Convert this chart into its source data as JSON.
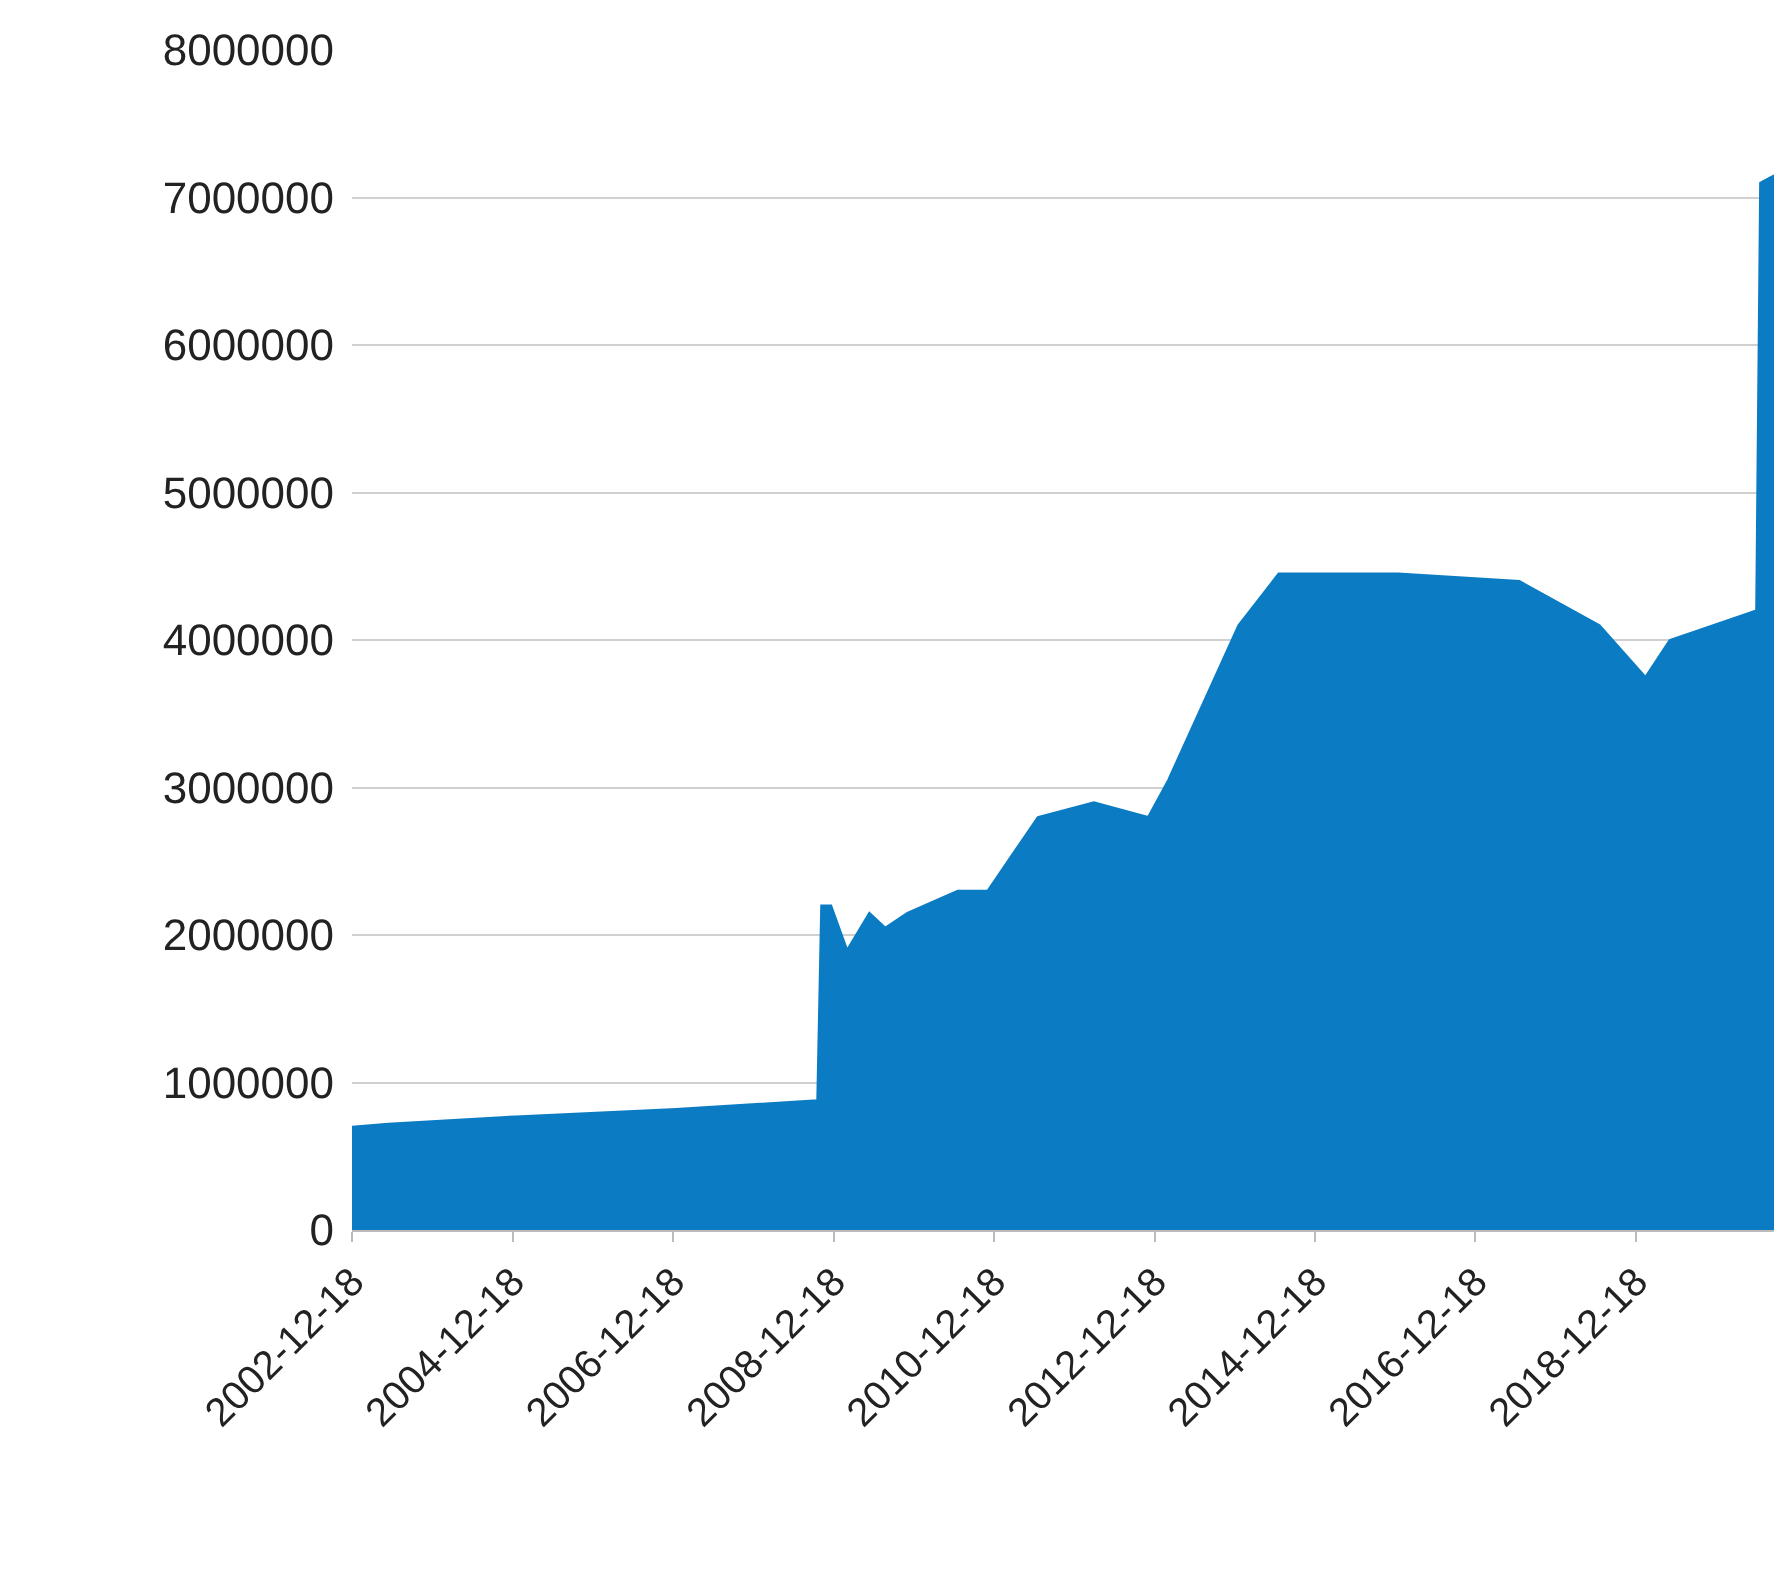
{
  "chart_data": {
    "type": "area",
    "color": "#0b7cc3",
    "x": [
      "2002-12-18",
      "2003-06-01",
      "2005-01-01",
      "2007-01-01",
      "2008-10-05",
      "2008-10-23",
      "2008-12-07",
      "2009-02-18",
      "2009-05-30",
      "2009-08-11",
      "2009-11-19",
      "2010-07-06",
      "2010-11-19",
      "2011-07-06",
      "2012-03-17",
      "2012-11-19",
      "2013-02-18",
      "2014-01-04",
      "2014-07-06",
      "2016-01-01",
      "2017-07-06",
      "2018-07-06",
      "2019-01-31",
      "2019-05-21",
      "2020-06-18",
      "2020-07-06",
      "2020-09-07"
    ],
    "values": [
      700000,
      720000,
      770000,
      820000,
      880000,
      2200000,
      2200000,
      1900000,
      2150000,
      2050000,
      2150000,
      2300000,
      2300000,
      2800000,
      2900000,
      2800000,
      3050000,
      4100000,
      4450000,
      4450000,
      4400000,
      4100000,
      3750000,
      4000000,
      4200000,
      7100000,
      7150000
    ],
    "xlim": [
      "2002-12-18",
      "2020-09-07"
    ],
    "xticks": [
      {
        "value": "2002-12-18",
        "label": "2002-12-18"
      },
      {
        "value": "2004-12-18",
        "label": "2004-12-18"
      },
      {
        "value": "2006-12-18",
        "label": "2006-12-18"
      },
      {
        "value": "2008-12-18",
        "label": "2008-12-18"
      },
      {
        "value": "2010-12-18",
        "label": "2010-12-18"
      },
      {
        "value": "2012-12-18",
        "label": "2012-12-18"
      },
      {
        "value": "2014-12-18",
        "label": "2014-12-18"
      },
      {
        "value": "2016-12-18",
        "label": "2016-12-18"
      },
      {
        "value": "2018-12-18",
        "label": "2018-12-18"
      }
    ],
    "ylim": [
      0,
      8000000
    ],
    "yticks": [
      0,
      1000000,
      2000000,
      3000000,
      4000000,
      5000000,
      6000000,
      7000000,
      8000000
    ],
    "grid": "y"
  }
}
